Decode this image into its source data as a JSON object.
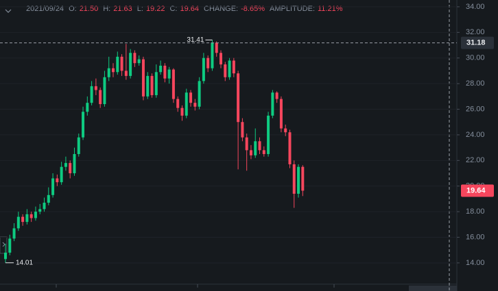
{
  "header": {
    "date": "2021/09/24",
    "items": [
      {
        "label": "O:",
        "value": "21.50"
      },
      {
        "label": "H:",
        "value": "21.63"
      },
      {
        "label": "L:",
        "value": "19.22"
      },
      {
        "label": "C:",
        "value": "19.64"
      },
      {
        "label": "CHANGE:",
        "value": "-8.65%"
      },
      {
        "label": "AMPLITUDE:",
        "value": "11.21%"
      }
    ]
  },
  "chart_data": {
    "type": "candlestick",
    "up_color": "#0ecb81",
    "down_color": "#f6465d",
    "ylim": [
      12.34,
      34.53
    ],
    "yticks": [
      {
        "value": 14,
        "label": "14.00"
      },
      {
        "value": 16,
        "label": "16.00"
      },
      {
        "value": 18,
        "label": "18.00"
      },
      {
        "value": 20,
        "label": "20.00"
      },
      {
        "value": 22,
        "label": "22.00"
      },
      {
        "value": 24,
        "label": "24.00"
      },
      {
        "value": 26,
        "label": "26.00"
      },
      {
        "value": 28,
        "label": "28.00"
      },
      {
        "value": 30,
        "label": "30.00"
      },
      {
        "value": 32,
        "label": "32.00"
      },
      {
        "value": 34,
        "label": "34.00"
      }
    ],
    "grid": true,
    "open": [
      14.3,
      14.8,
      15.9,
      16.7,
      17.6,
      17.2,
      17.8,
      17.5,
      18.0,
      18.2,
      18.7,
      19.3,
      20.6,
      20.3,
      21.5,
      21.8,
      21.0,
      22.5,
      23.8,
      25.8,
      26.5,
      27.8,
      27.5,
      26.4,
      28.5,
      29.2,
      28.9,
      30.1,
      29.0,
      28.6,
      30.4,
      29.6,
      29.9,
      27.0,
      28.6,
      27.1,
      28.9,
      29.4,
      28.4,
      29.1,
      26.8,
      26.1,
      25.5,
      27.3,
      26.5,
      26.2,
      28.2,
      30.0,
      29.2,
      31.2,
      30.4,
      29.5,
      28.5,
      29.8,
      28.8,
      25.0,
      23.8,
      22.8,
      22.4,
      23.5,
      22.8,
      22.5,
      25.5,
      27.3,
      26.8,
      24.5,
      24.2,
      21.7,
      19.4,
      21.5
    ],
    "high": [
      15.5,
      16.2,
      17.1,
      18.0,
      17.8,
      18.2,
      18.0,
      18.4,
      18.6,
      19.1,
      19.9,
      21.0,
      20.9,
      21.9,
      22.3,
      22.0,
      23.0,
      24.1,
      26.2,
      27.0,
      28.2,
      28.4,
      27.7,
      29.0,
      30.1,
      29.6,
      30.5,
      30.3,
      31.1,
      30.7,
      30.6,
      30.2,
      30.1,
      28.9,
      28.8,
      29.5,
      29.8,
      29.6,
      29.3,
      29.2,
      27.0,
      26.3,
      27.6,
      27.5,
      26.8,
      28.5,
      30.4,
      30.2,
      31.41,
      31.3,
      30.6,
      29.7,
      30.0,
      30.0,
      29.0,
      25.3,
      24.1,
      23.2,
      24.5,
      23.8,
      23.1,
      25.8,
      27.5,
      27.4,
      27.0,
      24.8,
      24.4,
      22.0,
      21.7,
      21.63
    ],
    "low": [
      14.01,
      14.6,
      15.7,
      16.5,
      16.9,
      17.0,
      17.2,
      17.3,
      17.8,
      18.0,
      18.5,
      19.1,
      20.0,
      20.1,
      21.2,
      20.6,
      20.8,
      22.3,
      23.6,
      25.5,
      26.3,
      27.1,
      26.1,
      26.2,
      28.2,
      28.5,
      28.7,
      28.6,
      28.3,
      28.4,
      29.3,
      29.4,
      26.7,
      26.8,
      26.9,
      26.9,
      28.7,
      28.1,
      28.0,
      26.5,
      25.8,
      25.1,
      25.3,
      26.2,
      25.9,
      26.0,
      28.0,
      28.9,
      29.0,
      30.1,
      29.2,
      28.2,
      28.3,
      28.5,
      21.3,
      23.5,
      21.2,
      22.1,
      22.2,
      22.5,
      22.3,
      22.3,
      25.3,
      26.5,
      24.2,
      23.9,
      21.4,
      18.3,
      19.1,
      19.22
    ],
    "close": [
      14.8,
      15.9,
      16.7,
      17.6,
      17.2,
      17.8,
      17.5,
      18.0,
      18.2,
      18.7,
      19.3,
      20.6,
      20.3,
      21.5,
      21.8,
      21.0,
      22.5,
      23.8,
      25.8,
      26.5,
      27.8,
      27.5,
      26.4,
      28.5,
      29.2,
      28.9,
      30.1,
      29.0,
      28.6,
      30.4,
      29.6,
      29.9,
      27.0,
      28.6,
      27.1,
      28.9,
      29.4,
      28.4,
      29.1,
      26.8,
      26.1,
      25.5,
      27.3,
      26.5,
      26.2,
      28.2,
      30.0,
      29.2,
      31.2,
      30.4,
      29.5,
      28.5,
      29.8,
      28.8,
      25.0,
      23.8,
      22.8,
      22.4,
      23.5,
      22.8,
      22.5,
      25.5,
      27.3,
      26.8,
      24.5,
      24.2,
      21.7,
      19.4,
      21.5,
      19.64
    ],
    "max_price": 31.41,
    "min_price": 14.01,
    "crosshair_price": 31.18,
    "last_price": 19.64
  }
}
